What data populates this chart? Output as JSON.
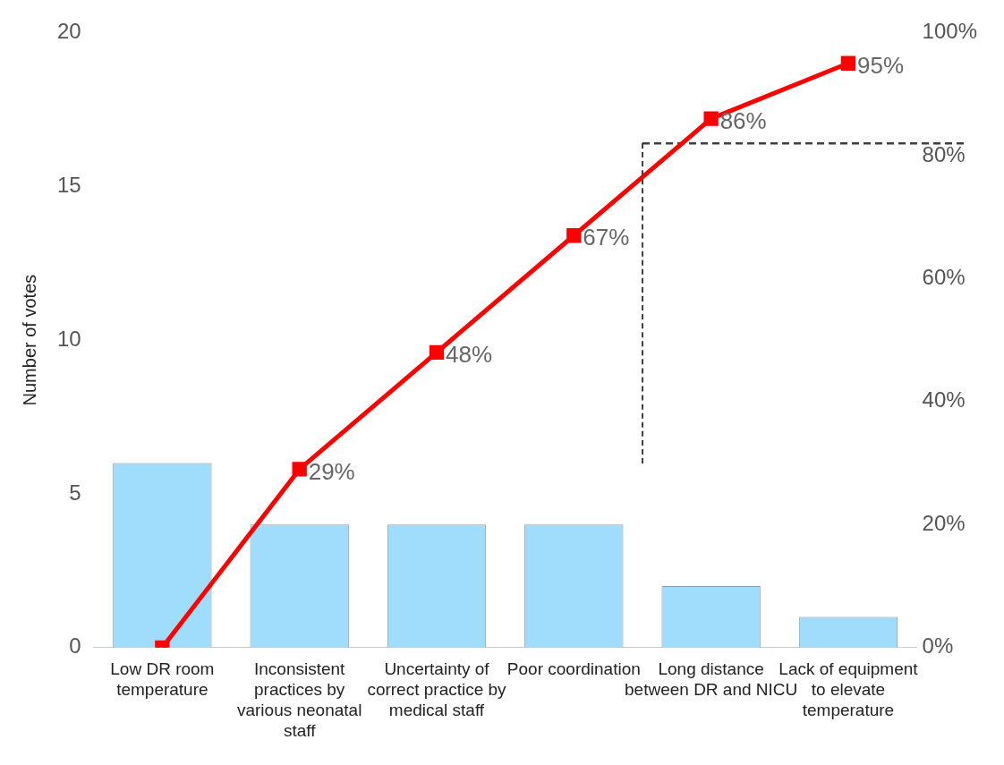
{
  "chart_data": {
    "type": "bar",
    "ylabel": "Number of votes",
    "categories": [
      "Low DR room temperature",
      "Inconsistent practices by various neonatal staff",
      "Uncertainty of correct practice by medical staff",
      "Poor coordination",
      "Long distance between DR and NICU",
      "Lack of equipment to elevate temperature"
    ],
    "series": [
      {
        "color": "#a0dcfb",
        "values": [
          6,
          4,
          4,
          4,
          2,
          1
        ]
      },
      {
        "type": "line",
        "axis": "y2",
        "color": "#ff0000",
        "values": [
          0,
          29,
          48,
          67,
          86,
          95
        ],
        "value_labels": [
          null,
          "29%",
          "48%",
          "67%",
          "86%",
          "95%"
        ]
      }
    ],
    "ylim": [
      0,
      20
    ],
    "yticks": [
      0,
      5,
      10,
      15,
      20
    ],
    "y2lim": [
      0,
      100
    ],
    "y2ticks": [
      {
        "value": 0,
        "label": "0%"
      },
      {
        "value": 20,
        "label": "20%"
      },
      {
        "value": 40,
        "label": "40%"
      },
      {
        "value": 60,
        "label": "60%"
      },
      {
        "value": 80,
        "label": "80%"
      },
      {
        "value": 100,
        "label": "100%"
      }
    ],
    "ref_lines": [
      {
        "axis": "y2",
        "value": 82,
        "color": "#404040",
        "line_style": "dashed"
      }
    ],
    "marker": "square",
    "line_style": "solid",
    "grid": false,
    "legend": false
  }
}
